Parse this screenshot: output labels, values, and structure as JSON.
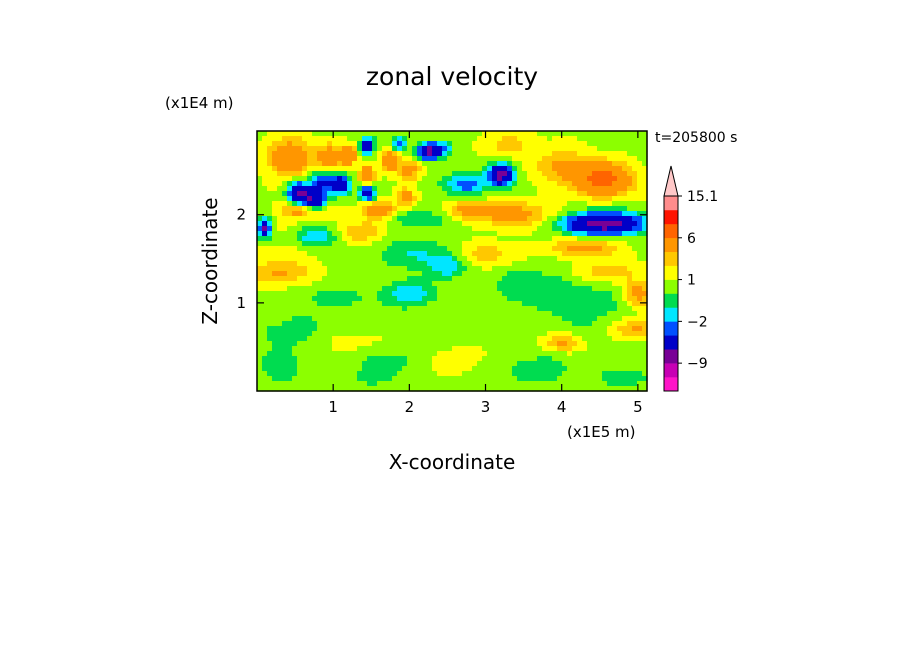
{
  "chart_data": {
    "type": "heatmap",
    "title": "zonal velocity",
    "xlabel": "X-coordinate",
    "ylabel": "Z-coordinate",
    "x_unit": "(x1E5 m)",
    "y_unit": "(x1E4 m)",
    "time_label": "t=205800 s",
    "xlim": [
      0,
      5.12
    ],
    "ylim": [
      0,
      2.95
    ],
    "x_ticks": [
      1,
      2,
      3,
      4,
      5
    ],
    "y_ticks": [
      1,
      2
    ],
    "colorbar": {
      "levels": [
        -15,
        -12,
        -9,
        -6,
        -3,
        -2,
        -1,
        0,
        1,
        2,
        3,
        6,
        9,
        12,
        15.1
      ],
      "colors": [
        "#ff14c8",
        "#c800b4",
        "#780096",
        "#0000c8",
        "#0050ff",
        "#00e6ff",
        "#00dc50",
        "#8cff00",
        "#ffff00",
        "#ffc800",
        "#ff9600",
        "#ff6400",
        "#ff1400",
        "#ff8c8c",
        "#ffc8c8"
      ],
      "labels": [
        {
          "text": "15.1",
          "value": 15.1
        },
        {
          "text": "6",
          "value": 6
        },
        {
          "text": "1",
          "value": 1
        },
        {
          "text": "−2",
          "value": -2
        },
        {
          "text": "−9",
          "value": -9
        }
      ]
    },
    "features": [
      {
        "x": 0.42,
        "z": 2.65,
        "u": 4.0,
        "rx": 0.28,
        "rz": 0.22
      },
      {
        "x": 0.95,
        "z": 2.65,
        "u": 3.5,
        "rx": 0.18,
        "rz": 0.15
      },
      {
        "x": 0.85,
        "z": 2.38,
        "u": -4.0,
        "rx": 0.15,
        "rz": 0.12
      },
      {
        "x": 0.55,
        "z": 2.25,
        "u": -6.5,
        "rx": 0.14,
        "rz": 0.12
      },
      {
        "x": 0.75,
        "z": 2.15,
        "u": -7.0,
        "rx": 0.16,
        "rz": 0.13
      },
      {
        "x": 0.65,
        "z": 2.05,
        "u": 4.0,
        "rx": 0.3,
        "rz": 0.1
      },
      {
        "x": 1.1,
        "z": 2.35,
        "u": -6.0,
        "rx": 0.12,
        "rz": 0.11
      },
      {
        "x": 1.2,
        "z": 2.67,
        "u": 4.5,
        "rx": 0.1,
        "rz": 0.1
      },
      {
        "x": 1.45,
        "z": 2.78,
        "u": -7.0,
        "rx": 0.08,
        "rz": 0.09
      },
      {
        "x": 1.45,
        "z": 2.45,
        "u": 5.0,
        "rx": 0.1,
        "rz": 0.1
      },
      {
        "x": 1.45,
        "z": 2.25,
        "u": -6.0,
        "rx": 0.1,
        "rz": 0.09
      },
      {
        "x": 1.75,
        "z": 2.62,
        "u": 5.0,
        "rx": 0.1,
        "rz": 0.12
      },
      {
        "x": 1.85,
        "z": 2.8,
        "u": -3.5,
        "rx": 0.1,
        "rz": 0.08
      },
      {
        "x": 1.6,
        "z": 2.05,
        "u": 4.0,
        "rx": 0.22,
        "rz": 0.1
      },
      {
        "x": 2.0,
        "z": 2.5,
        "u": 3.0,
        "rx": 0.15,
        "rz": 0.12
      },
      {
        "x": 2.25,
        "z": 2.72,
        "u": -8.0,
        "rx": 0.14,
        "rz": 0.09
      },
      {
        "x": 2.45,
        "z": 2.75,
        "u": -2.5,
        "rx": 0.12,
        "rz": 0.1
      },
      {
        "x": 1.95,
        "z": 2.2,
        "u": 3.0,
        "rx": 0.12,
        "rz": 0.1
      },
      {
        "x": 2.1,
        "z": 1.95,
        "u": -1.5,
        "rx": 0.4,
        "rz": 0.1
      },
      {
        "x": 2.75,
        "z": 2.35,
        "u": -3.5,
        "rx": 0.28,
        "rz": 0.12
      },
      {
        "x": 3.2,
        "z": 2.45,
        "u": -7.5,
        "rx": 0.16,
        "rz": 0.12
      },
      {
        "x": 3.3,
        "z": 2.8,
        "u": 1.8,
        "rx": 0.3,
        "rz": 0.15
      },
      {
        "x": 3.4,
        "z": 2.0,
        "u": 3.2,
        "rx": 0.45,
        "rz": 0.14
      },
      {
        "x": 2.8,
        "z": 2.05,
        "u": 2.8,
        "rx": 0.3,
        "rz": 0.1
      },
      {
        "x": 4.55,
        "z": 2.4,
        "u": 6.5,
        "rx": 0.35,
        "rz": 0.18
      },
      {
        "x": 4.0,
        "z": 2.55,
        "u": 2.5,
        "rx": 0.35,
        "rz": 0.2
      },
      {
        "x": 4.55,
        "z": 1.9,
        "u": -8.5,
        "rx": 0.5,
        "rz": 0.12
      },
      {
        "x": 4.3,
        "z": 1.62,
        "u": 3.0,
        "rx": 0.45,
        "rz": 0.1
      },
      {
        "x": 0.1,
        "z": 1.85,
        "u": -7.0,
        "rx": 0.08,
        "rz": 0.1
      },
      {
        "x": 0.35,
        "z": 1.85,
        "u": 0.3,
        "rx": 0.3,
        "rz": 0.1
      },
      {
        "x": 0.8,
        "z": 1.75,
        "u": -2.8,
        "rx": 0.3,
        "rz": 0.12
      },
      {
        "x": 0.45,
        "z": 1.6,
        "u": 0.6,
        "rx": 0.4,
        "rz": 0.1
      },
      {
        "x": 0.3,
        "z": 1.35,
        "u": 2.5,
        "rx": 0.4,
        "rz": 0.14
      },
      {
        "x": 1.35,
        "z": 1.8,
        "u": 2.5,
        "rx": 0.3,
        "rz": 0.12
      },
      {
        "x": 2.1,
        "z": 1.55,
        "u": -1.8,
        "rx": 0.55,
        "rz": 0.18
      },
      {
        "x": 2.5,
        "z": 1.4,
        "u": -2.5,
        "rx": 0.22,
        "rz": 0.12
      },
      {
        "x": 2.0,
        "z": 1.1,
        "u": -2.8,
        "rx": 0.3,
        "rz": 0.14
      },
      {
        "x": 1.0,
        "z": 1.05,
        "u": -1.2,
        "rx": 0.5,
        "rz": 0.13
      },
      {
        "x": 3.5,
        "z": 1.2,
        "u": -1.5,
        "rx": 0.45,
        "rz": 0.2
      },
      {
        "x": 3.0,
        "z": 1.55,
        "u": 1.8,
        "rx": 0.4,
        "rz": 0.15
      },
      {
        "x": 4.3,
        "z": 1.0,
        "u": -1.4,
        "rx": 0.6,
        "rz": 0.3
      },
      {
        "x": 4.6,
        "z": 1.35,
        "u": 2.3,
        "rx": 0.4,
        "rz": 0.12
      },
      {
        "x": 5.0,
        "z": 1.1,
        "u": 3.0,
        "rx": 0.2,
        "rz": 0.15
      },
      {
        "x": 4.95,
        "z": 0.7,
        "u": 2.5,
        "rx": 0.3,
        "rz": 0.12
      },
      {
        "x": 4.0,
        "z": 0.55,
        "u": 2.5,
        "rx": 0.25,
        "rz": 0.1
      },
      {
        "x": 3.7,
        "z": 0.25,
        "u": -1.6,
        "rx": 0.4,
        "rz": 0.15
      },
      {
        "x": 4.8,
        "z": 0.15,
        "u": -1.5,
        "rx": 0.35,
        "rz": 0.12
      },
      {
        "x": 1.3,
        "z": 0.55,
        "u": 0.6,
        "rx": 0.45,
        "rz": 0.15
      },
      {
        "x": 0.5,
        "z": 0.7,
        "u": -1.2,
        "rx": 0.45,
        "rz": 0.18
      },
      {
        "x": 0.3,
        "z": 0.3,
        "u": -1.5,
        "rx": 0.3,
        "rz": 0.2
      },
      {
        "x": 1.7,
        "z": 0.35,
        "u": -1.3,
        "rx": 0.4,
        "rz": 0.15
      },
      {
        "x": 2.6,
        "z": 0.35,
        "u": 0.7,
        "rx": 0.35,
        "rz": 0.15
      },
      {
        "x": 1.5,
        "z": 0.15,
        "u": -1.2,
        "rx": 0.3,
        "rz": 0.1
      }
    ]
  }
}
